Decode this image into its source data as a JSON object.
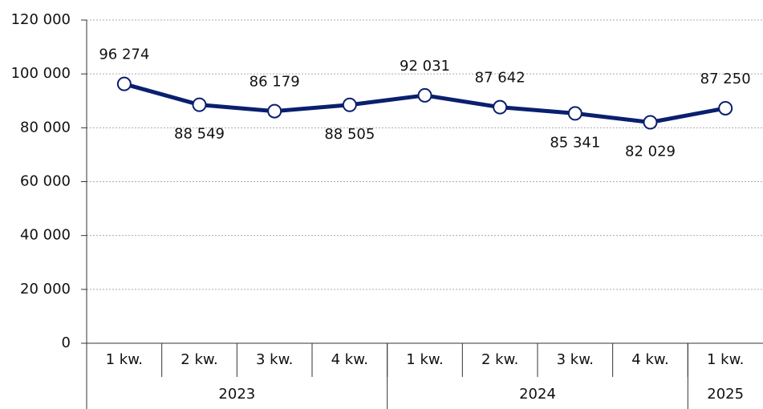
{
  "chart_data": {
    "type": "line",
    "categories": [
      "1 kw.",
      "2 kw.",
      "3 kw.",
      "4 kw.",
      "1 kw.",
      "2 kw.",
      "3 kw.",
      "4 kw.",
      "1 kw."
    ],
    "groups": [
      {
        "name": "2023",
        "span": 4
      },
      {
        "name": "2024",
        "span": 4
      },
      {
        "name": "2025",
        "span": 1
      }
    ],
    "series": [
      {
        "color": "#0a1f6e",
        "values": [
          96274,
          88549,
          86179,
          88505,
          92031,
          87642,
          85341,
          82029,
          87250
        ],
        "value_labels": [
          "96 274",
          "88 549",
          "86 179",
          "88 505",
          "92 031",
          "87 642",
          "85 341",
          "82 029",
          "87 250"
        ],
        "label_positions": [
          "above",
          "below",
          "above",
          "below",
          "above",
          "above",
          "below",
          "below",
          "above"
        ]
      }
    ],
    "ylim": [
      0,
      120000
    ],
    "yticks": [
      0,
      {
        "value": 20000,
        "label": "20 000"
      },
      {
        "value": 40000,
        "label": "40 000"
      },
      {
        "value": 60000,
        "label": "60 000"
      },
      {
        "value": 80000,
        "label": "80 000"
      },
      {
        "value": 100000,
        "label": "100 000"
      },
      {
        "value": 120000,
        "label": "120 000"
      }
    ],
    "grid": true
  }
}
